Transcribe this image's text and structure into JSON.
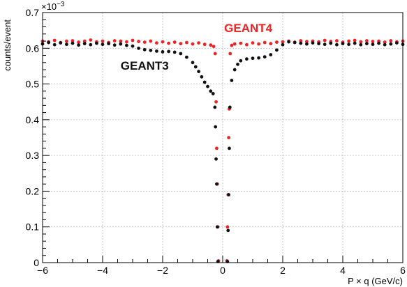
{
  "chart_data": {
    "type": "scatter",
    "title": "",
    "xlabel": "P × q (GeV/c)",
    "ylabel": "counts/event",
    "y_multiplier_base": "×10",
    "y_multiplier_exp": "−3",
    "xlim": [
      -6,
      6
    ],
    "ylim": [
      0,
      0.7
    ],
    "grid": true,
    "x_ticks": [
      -6,
      -4,
      -2,
      0,
      2,
      4,
      6
    ],
    "x_tick_labels": [
      "−6",
      "−4",
      "−2",
      "0",
      "2",
      "4",
      "6"
    ],
    "y_ticks": [
      0,
      0.1,
      0.2,
      0.3,
      0.4,
      0.5,
      0.6,
      0.7
    ],
    "y_tick_labels": [
      "0",
      "0.1",
      "0.2",
      "0.3",
      "0.4",
      "0.5",
      "0.6",
      "0.7"
    ],
    "series": [
      {
        "name": "GEANT4",
        "color": "#ee2222",
        "label_anchor": [
          0.05,
          0.645
        ],
        "points": [
          [
            -6.0,
            0.62
          ],
          [
            -5.8,
            0.618
          ],
          [
            -5.6,
            0.622
          ],
          [
            -5.4,
            0.616
          ],
          [
            -5.2,
            0.62
          ],
          [
            -5.0,
            0.621
          ],
          [
            -4.8,
            0.617
          ],
          [
            -4.6,
            0.62
          ],
          [
            -4.4,
            0.623
          ],
          [
            -4.2,
            0.618
          ],
          [
            -4.0,
            0.62
          ],
          [
            -3.8,
            0.616
          ],
          [
            -3.6,
            0.621
          ],
          [
            -3.4,
            0.62
          ],
          [
            -3.2,
            0.618
          ],
          [
            -3.0,
            0.622
          ],
          [
            -2.8,
            0.619
          ],
          [
            -2.6,
            0.617
          ],
          [
            -2.4,
            0.62
          ],
          [
            -2.2,
            0.615
          ],
          [
            -2.0,
            0.618
          ],
          [
            -1.8,
            0.614
          ],
          [
            -1.6,
            0.617
          ],
          [
            -1.4,
            0.613
          ],
          [
            -1.2,
            0.616
          ],
          [
            -1.0,
            0.612
          ],
          [
            -0.8,
            0.615
          ],
          [
            -0.6,
            0.611
          ],
          [
            -0.4,
            0.609
          ],
          [
            -0.3,
            0.605
          ],
          [
            -0.25,
            0.585
          ],
          [
            -0.22,
            0.45
          ],
          [
            -0.2,
            0.32
          ],
          [
            -0.18,
            0.22
          ],
          [
            -0.16,
            0.1
          ],
          [
            -0.14,
            0.005
          ],
          [
            0.14,
            0.005
          ],
          [
            0.16,
            0.1
          ],
          [
            0.18,
            0.19
          ],
          [
            0.2,
            0.35
          ],
          [
            0.22,
            0.43
          ],
          [
            0.25,
            0.585
          ],
          [
            0.3,
            0.608
          ],
          [
            0.4,
            0.612
          ],
          [
            0.6,
            0.614
          ],
          [
            0.8,
            0.61
          ],
          [
            1.0,
            0.615
          ],
          [
            1.2,
            0.612
          ],
          [
            1.4,
            0.616
          ],
          [
            1.6,
            0.613
          ],
          [
            1.8,
            0.617
          ],
          [
            2.0,
            0.618
          ],
          [
            2.2,
            0.62
          ],
          [
            2.4,
            0.617
          ],
          [
            2.6,
            0.621
          ],
          [
            2.8,
            0.619
          ],
          [
            3.0,
            0.62
          ],
          [
            3.2,
            0.618
          ],
          [
            3.4,
            0.622
          ],
          [
            3.6,
            0.619
          ],
          [
            3.8,
            0.621
          ],
          [
            4.0,
            0.617
          ],
          [
            4.2,
            0.62
          ],
          [
            4.4,
            0.622
          ],
          [
            4.6,
            0.618
          ],
          [
            4.8,
            0.621
          ],
          [
            5.0,
            0.619
          ],
          [
            5.2,
            0.62
          ],
          [
            5.4,
            0.617
          ],
          [
            5.6,
            0.621
          ],
          [
            5.8,
            0.618
          ],
          [
            6.0,
            0.62
          ]
        ]
      },
      {
        "name": "GEANT3",
        "color": "#111111",
        "label_anchor": [
          -3.4,
          0.54
        ],
        "points": [
          [
            -6.0,
            0.612
          ],
          [
            -5.8,
            0.616
          ],
          [
            -5.6,
            0.61
          ],
          [
            -5.4,
            0.615
          ],
          [
            -5.2,
            0.611
          ],
          [
            -5.0,
            0.614
          ],
          [
            -4.8,
            0.609
          ],
          [
            -4.6,
            0.613
          ],
          [
            -4.4,
            0.61
          ],
          [
            -4.2,
            0.614
          ],
          [
            -4.0,
            0.611
          ],
          [
            -3.8,
            0.613
          ],
          [
            -3.6,
            0.609
          ],
          [
            -3.4,
            0.612
          ],
          [
            -3.2,
            0.608
          ],
          [
            -3.0,
            0.606
          ],
          [
            -2.8,
            0.6
          ],
          [
            -2.6,
            0.596
          ],
          [
            -2.4,
            0.594
          ],
          [
            -2.2,
            0.592
          ],
          [
            -2.0,
            0.59
          ],
          [
            -1.8,
            0.591
          ],
          [
            -1.6,
            0.589
          ],
          [
            -1.4,
            0.585
          ],
          [
            -1.2,
            0.575
          ],
          [
            -1.0,
            0.56
          ],
          [
            -0.9,
            0.548
          ],
          [
            -0.8,
            0.535
          ],
          [
            -0.7,
            0.52
          ],
          [
            -0.6,
            0.505
          ],
          [
            -0.5,
            0.493
          ],
          [
            -0.4,
            0.48
          ],
          [
            -0.32,
            0.473
          ],
          [
            -0.26,
            0.435
          ],
          [
            -0.24,
            0.38
          ],
          [
            -0.22,
            0.29
          ],
          [
            -0.2,
            0.22
          ],
          [
            -0.18,
            0.1
          ],
          [
            -0.16,
            0.003
          ],
          [
            0.16,
            0.003
          ],
          [
            0.18,
            0.09
          ],
          [
            0.2,
            0.19
          ],
          [
            0.22,
            0.32
          ],
          [
            0.24,
            0.435
          ],
          [
            0.3,
            0.51
          ],
          [
            0.4,
            0.54
          ],
          [
            0.5,
            0.555
          ],
          [
            0.6,
            0.565
          ],
          [
            0.8,
            0.57
          ],
          [
            1.0,
            0.572
          ],
          [
            1.2,
            0.573
          ],
          [
            1.4,
            0.576
          ],
          [
            1.6,
            0.582
          ],
          [
            1.8,
            0.595
          ],
          [
            2.0,
            0.61
          ],
          [
            2.2,
            0.618
          ],
          [
            2.4,
            0.616
          ],
          [
            2.6,
            0.614
          ],
          [
            2.8,
            0.612
          ],
          [
            3.0,
            0.615
          ],
          [
            3.2,
            0.613
          ],
          [
            3.4,
            0.611
          ],
          [
            3.6,
            0.614
          ],
          [
            3.8,
            0.61
          ],
          [
            4.0,
            0.613
          ],
          [
            4.2,
            0.611
          ],
          [
            4.4,
            0.614
          ],
          [
            4.6,
            0.61
          ],
          [
            4.8,
            0.613
          ],
          [
            5.0,
            0.611
          ],
          [
            5.2,
            0.614
          ],
          [
            5.4,
            0.61
          ],
          [
            5.6,
            0.612
          ],
          [
            5.8,
            0.615
          ],
          [
            6.0,
            0.611
          ]
        ]
      }
    ]
  }
}
